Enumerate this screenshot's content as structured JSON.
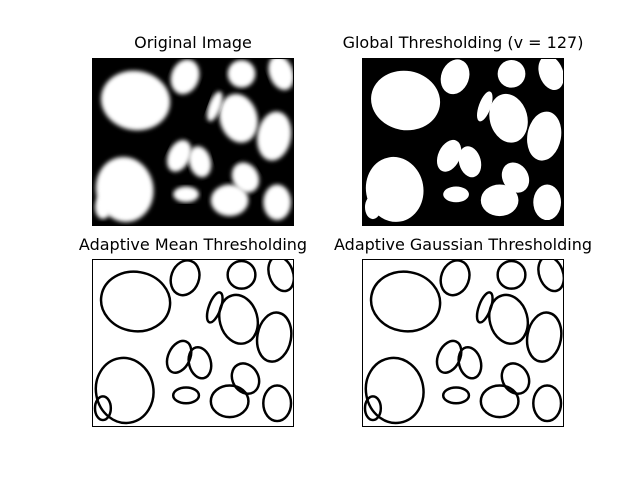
{
  "figure": {
    "panels": [
      {
        "title": "Original Image",
        "variant": "grayscale"
      },
      {
        "title": "Global Thresholding (v = 127)",
        "variant": "binary"
      },
      {
        "title": "Adaptive Mean Thresholding",
        "variant": "edges"
      },
      {
        "title": "Adaptive Gaussian Thresholding",
        "variant": "edges"
      }
    ]
  },
  "colors": {
    "ink": "#000000",
    "paper": "#ffffff"
  }
}
